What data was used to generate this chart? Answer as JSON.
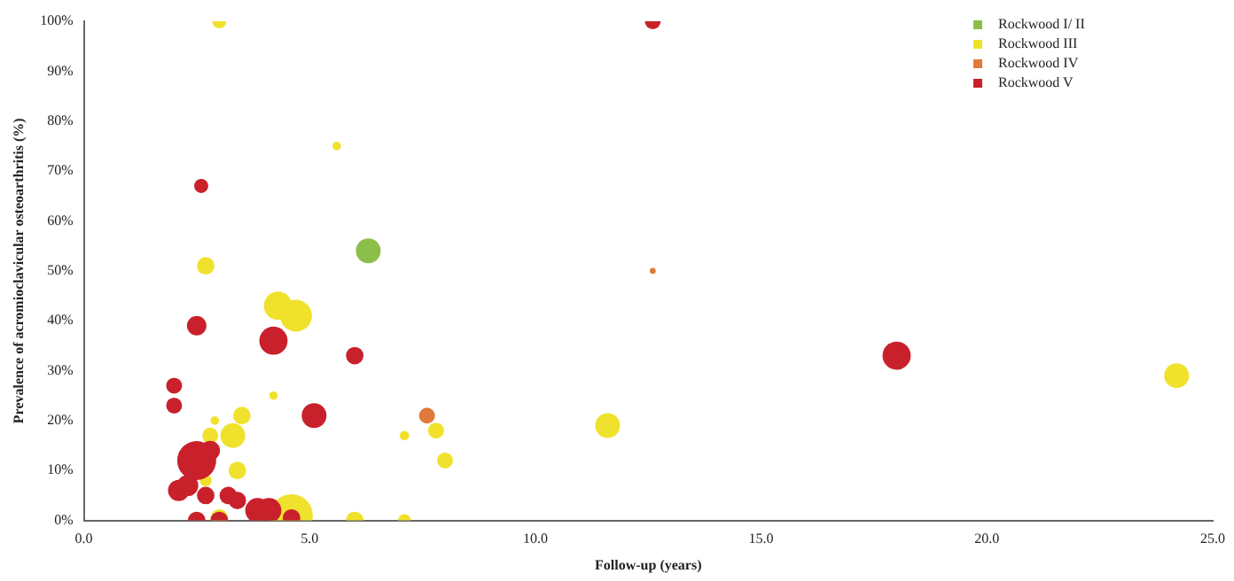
{
  "chart_data": {
    "type": "bubble",
    "xlabel": "Follow-up (years)",
    "ylabel": "Prevalence of acromioclavicular osteoarthritis (%)",
    "xlim": [
      0,
      25
    ],
    "xticks": [
      {
        "value": 0,
        "label": "0.0"
      },
      {
        "value": 5,
        "label": "5.0"
      },
      {
        "value": 10,
        "label": "10.0"
      },
      {
        "value": 15,
        "label": "15.0"
      },
      {
        "value": 20,
        "label": "20.0"
      },
      {
        "value": 25,
        "label": "25.0"
      }
    ],
    "ylim": [
      0,
      100
    ],
    "yticks": [
      {
        "value": 0,
        "label": "0%"
      },
      {
        "value": 10,
        "label": "10%"
      },
      {
        "value": 20,
        "label": "20%"
      },
      {
        "value": 30,
        "label": "30%"
      },
      {
        "value": 40,
        "label": "40%"
      },
      {
        "value": 50,
        "label": "50%"
      },
      {
        "value": 60,
        "label": "60%"
      },
      {
        "value": 70,
        "label": "70%"
      },
      {
        "value": 80,
        "label": "80%"
      },
      {
        "value": 90,
        "label": "90%"
      },
      {
        "value": 100,
        "label": "100%"
      }
    ],
    "grid": false,
    "legend": "top right",
    "series": [
      {
        "name": "Rockwood I/ II",
        "color": "#8bbf4a",
        "x": [
          6.3
        ],
        "values": [
          54
        ],
        "sizes": [
          0.34
        ]
      },
      {
        "name": "Rockwood III",
        "color": "#f0e22c",
        "x": [
          3.0,
          5.6,
          2.7,
          4.3,
          4.7,
          4.2,
          2.9,
          2.8,
          3.3,
          3.5,
          3.4,
          2.7,
          3.0,
          4.6,
          6.0,
          7.1,
          7.1,
          7.8,
          8.0,
          11.6,
          24.2
        ],
        "values": [
          100,
          75,
          51,
          43,
          41,
          25,
          20,
          17,
          17,
          21,
          10,
          8,
          0.5,
          1,
          0,
          0,
          17,
          18,
          12,
          19,
          29
        ],
        "sizes": [
          0.11,
          0.04,
          0.17,
          0.44,
          0.56,
          0.04,
          0.04,
          0.14,
          0.34,
          0.17,
          0.17,
          0.08,
          0.17,
          1,
          0.17,
          0.09,
          0.05,
          0.14,
          0.14,
          0.34,
          0.34
        ]
      },
      {
        "name": "Rockwood IV",
        "color": "#e07a3a",
        "x": [
          7.6,
          12.6
        ],
        "values": [
          21,
          50
        ],
        "sizes": [
          0.14,
          0.02
        ]
      },
      {
        "name": "Rockwood V",
        "color": "#c9212b",
        "x": [
          18.0,
          12.6,
          2.6,
          2.5,
          4.2,
          6.0,
          2.0,
          2.0,
          5.1,
          2.5,
          2.8,
          2.1,
          2.3,
          2.7,
          3.2,
          3.4,
          3.85,
          4.1,
          2.5,
          3.0,
          4.6
        ],
        "values": [
          33,
          100,
          67,
          39,
          36,
          33,
          27,
          23,
          21,
          12,
          14,
          6,
          7,
          5,
          5,
          4,
          2,
          2,
          0,
          0,
          0.5
        ],
        "sizes": [
          0.44,
          0.14,
          0.11,
          0.21,
          0.44,
          0.17,
          0.14,
          0.14,
          0.34,
          0.84,
          0.21,
          0.25,
          0.25,
          0.17,
          0.17,
          0.17,
          0.34,
          0.34,
          0.17,
          0.17,
          0.17
        ]
      }
    ]
  }
}
